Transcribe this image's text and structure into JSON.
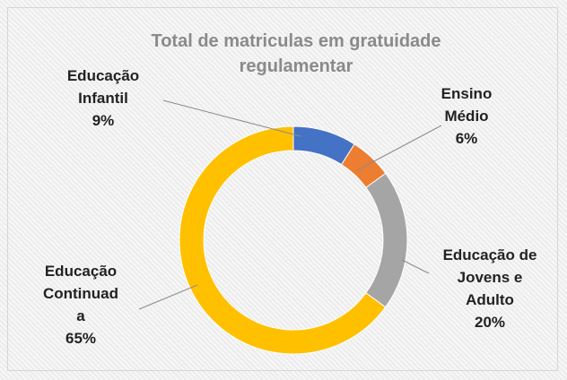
{
  "chart_data": {
    "type": "pie",
    "title": "Total de matriculas em gratuidade regulamentar",
    "categories": [
      "Educação Infantil",
      "Ensino Médio",
      "Educação de Jovens e Adulto",
      "Educação Continuada"
    ],
    "values": [
      9,
      6,
      20,
      65
    ],
    "value_labels": [
      "9%",
      "6%",
      "20%",
      "65%"
    ],
    "colors": [
      "#4472c4",
      "#ed7d31",
      "#a5a5a5",
      "#ffc000"
    ]
  }
}
